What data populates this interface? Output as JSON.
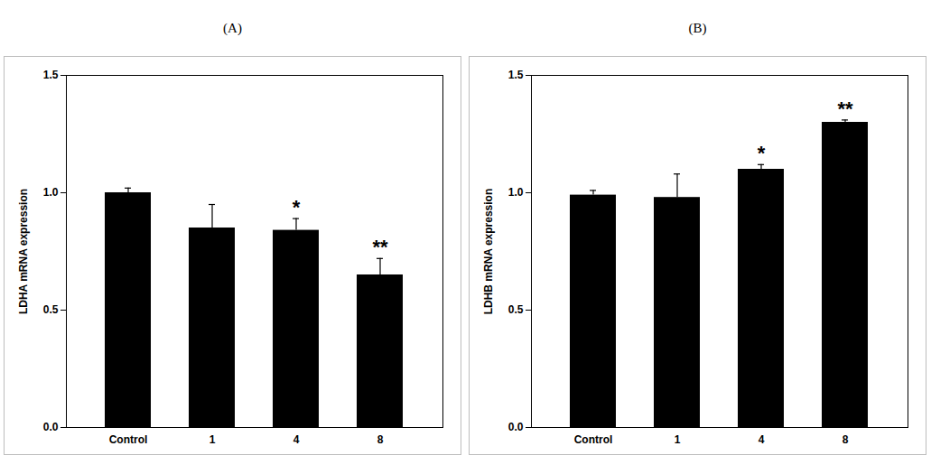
{
  "chart_data": [
    {
      "type": "bar",
      "title": "(A)",
      "y_label": "LDHA mRNA expression",
      "categories": [
        "Control",
        "1",
        "4",
        "8"
      ],
      "values": [
        1.0,
        0.85,
        0.84,
        0.65
      ],
      "errors": [
        0.02,
        0.1,
        0.05,
        0.07
      ],
      "annotations": [
        {
          "category": "4",
          "text": "*"
        },
        {
          "category": "8",
          "text": "**"
        }
      ],
      "color": "#000000",
      "ylim": [
        0,
        1.5
      ],
      "yticks": [
        {
          "value": 0,
          "label": "0.0"
        },
        {
          "value": 0.5,
          "label": "0.5"
        },
        {
          "value": 1,
          "label": "1.0"
        },
        {
          "value": 1.5,
          "label": "1.5"
        }
      ],
      "grid": false
    },
    {
      "type": "bar",
      "title": "(B)",
      "y_label": "LDHB mRNA expression",
      "categories": [
        "Control",
        "1",
        "4",
        "8"
      ],
      "values": [
        0.99,
        0.98,
        1.1,
        1.3
      ],
      "errors": [
        0.02,
        0.1,
        0.02,
        0.01
      ],
      "annotations": [
        {
          "category": "4",
          "text": "*"
        },
        {
          "category": "8",
          "text": "**"
        }
      ],
      "color": "#000000",
      "ylim": [
        0,
        1.5
      ],
      "yticks": [
        {
          "value": 0,
          "label": "0.0"
        },
        {
          "value": 0.5,
          "label": "0.5"
        },
        {
          "value": 1,
          "label": "1.0"
        },
        {
          "value": 1.5,
          "label": "1.5"
        }
      ],
      "grid": false
    }
  ]
}
